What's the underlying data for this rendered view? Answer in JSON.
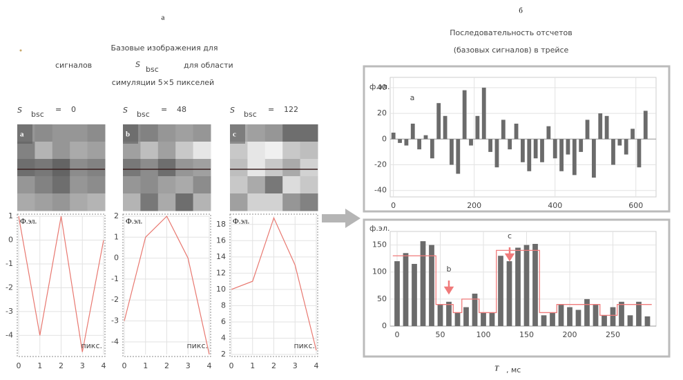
{
  "panel_labels": [
    "а",
    "б"
  ],
  "left_title": {
    "line1": "Базовые изображения для",
    "line2_before": "сигналов",
    "line2_after": "для области",
    "line3": "симуляции  5×5 пикселей"
  },
  "right_title": [
    "Последовательность отсчетов",
    "(базовых сигналов) в трейсе"
  ],
  "symbol": {
    "letter": "S",
    "subscript": "bsc",
    "equals": "="
  },
  "footer": {
    "letter": "T",
    "unit": ", мс"
  },
  "chart_data": [
    {
      "type": "line",
      "s_bsc": 0,
      "image_label": "a",
      "pixels": [
        [
          150,
          140,
          150,
          150,
          140
        ],
        [
          130,
          180,
          150,
          170,
          160
        ],
        [
          110,
          120,
          100,
          140,
          130
        ],
        [
          150,
          130,
          110,
          150,
          140
        ],
        [
          170,
          160,
          150,
          170,
          180
        ]
      ],
      "ylabel": "Ф.эл.",
      "xlabel": "пикс.",
      "x": [
        0,
        1,
        2,
        3,
        4
      ],
      "xlim": [
        0,
        4
      ],
      "xticks": [
        0,
        1,
        2,
        3,
        4
      ],
      "values": [
        1,
        -4,
        1,
        -4.7,
        0
      ],
      "ylim": [
        -4.8,
        1
      ],
      "yticks": [
        1,
        0,
        -1,
        -2,
        -3,
        -4
      ],
      "color": "#e8776f"
    },
    {
      "type": "line",
      "s_bsc": 48,
      "image_label": "b",
      "pixels": [
        [
          140,
          130,
          150,
          160,
          150
        ],
        [
          160,
          190,
          160,
          200,
          230
        ],
        [
          120,
          140,
          110,
          150,
          160
        ],
        [
          150,
          140,
          160,
          170,
          140
        ],
        [
          180,
          120,
          170,
          110,
          180
        ]
      ],
      "ylabel": "Ф.эл.",
      "xlabel": "пикс.",
      "x": [
        0,
        1,
        2,
        3,
        4
      ],
      "xlim": [
        0,
        4
      ],
      "xticks": [
        0,
        1,
        2,
        3,
        4
      ],
      "values": [
        -3,
        1,
        2,
        0,
        -4.6
      ],
      "ylim": [
        -4.6,
        2
      ],
      "yticks": [
        2,
        1,
        0,
        -1,
        -2,
        -3,
        -4
      ],
      "color": "#e8776f"
    },
    {
      "type": "line",
      "s_bsc": 122,
      "image_label": "c",
      "pixels": [
        [
          170,
          160,
          150,
          110,
          110
        ],
        [
          200,
          230,
          240,
          200,
          190
        ],
        [
          190,
          230,
          200,
          170,
          210
        ],
        [
          200,
          170,
          120,
          220,
          200
        ],
        [
          160,
          210,
          210,
          150,
          130
        ]
      ],
      "ylabel": "Ф.эл.",
      "xlabel": "пикс.",
      "x": [
        0,
        1,
        2,
        3,
        4
      ],
      "xlim": [
        0,
        4
      ],
      "xticks": [
        0,
        1,
        2,
        3,
        4
      ],
      "values": [
        10,
        11,
        18.8,
        13,
        2.5
      ],
      "ylim": [
        2,
        19
      ],
      "yticks": [
        2,
        4,
        6,
        8,
        10,
        12,
        14,
        16,
        18
      ],
      "color": "#e8776f"
    },
    {
      "type": "bar",
      "ylabel": "ф.эл.",
      "annotations": [
        "a"
      ],
      "color": "#6b6b6b",
      "grid": true,
      "x": [
        0,
        16,
        32,
        48,
        64,
        80,
        96,
        112,
        128,
        144,
        160,
        176,
        192,
        208,
        224,
        240,
        256,
        272,
        288,
        304,
        320,
        336,
        352,
        368,
        384,
        400,
        416,
        432,
        448,
        464,
        480,
        496,
        512,
        528,
        544,
        560,
        576,
        592,
        608,
        624
      ],
      "values": [
        5,
        -3,
        -5,
        12,
        -8,
        3,
        -15,
        28,
        18,
        -20,
        -27,
        38,
        -5,
        18,
        40,
        -10,
        -22,
        15,
        -8,
        12,
        -18,
        -25,
        -15,
        -18,
        10,
        -15,
        -25,
        -12,
        -28,
        -10,
        15,
        -30,
        20,
        18,
        -20,
        -5,
        -12,
        8,
        -22,
        22
      ],
      "xlim": [
        -8,
        650
      ],
      "xticks": [
        0,
        200,
        400,
        600
      ],
      "ylim": [
        -45,
        48
      ],
      "yticks": [
        -40,
        -20,
        0,
        20,
        40
      ]
    },
    {
      "type": "bar",
      "ylabel": "ф.эл.",
      "annotations": [
        "b",
        "c"
      ],
      "color": "#6b6b6b",
      "grid": true,
      "step_color": "#f07a7a",
      "x": [
        0,
        10,
        20,
        30,
        40,
        50,
        60,
        70,
        80,
        90,
        100,
        110,
        120,
        130,
        140,
        150,
        160,
        170,
        180,
        190,
        200,
        210,
        220,
        230,
        240,
        250,
        260,
        270,
        280,
        290
      ],
      "values": [
        120,
        135,
        115,
        157,
        150,
        40,
        45,
        25,
        35,
        60,
        25,
        25,
        130,
        120,
        145,
        150,
        152,
        20,
        25,
        40,
        35,
        30,
        50,
        40,
        20,
        35,
        45,
        20,
        45,
        18
      ],
      "step_values": [
        130,
        130,
        130,
        130,
        130,
        40,
        40,
        25,
        50,
        50,
        25,
        25,
        140,
        140,
        140,
        140,
        140,
        25,
        25,
        40,
        40,
        40,
        40,
        40,
        20,
        20,
        40,
        40,
        40,
        40
      ],
      "xlim": [
        -8,
        300
      ],
      "xticks": [
        0,
        50,
        100,
        150,
        200,
        250
      ],
      "ylim": [
        0,
        175
      ],
      "yticks": [
        0,
        50,
        100,
        150
      ]
    }
  ]
}
